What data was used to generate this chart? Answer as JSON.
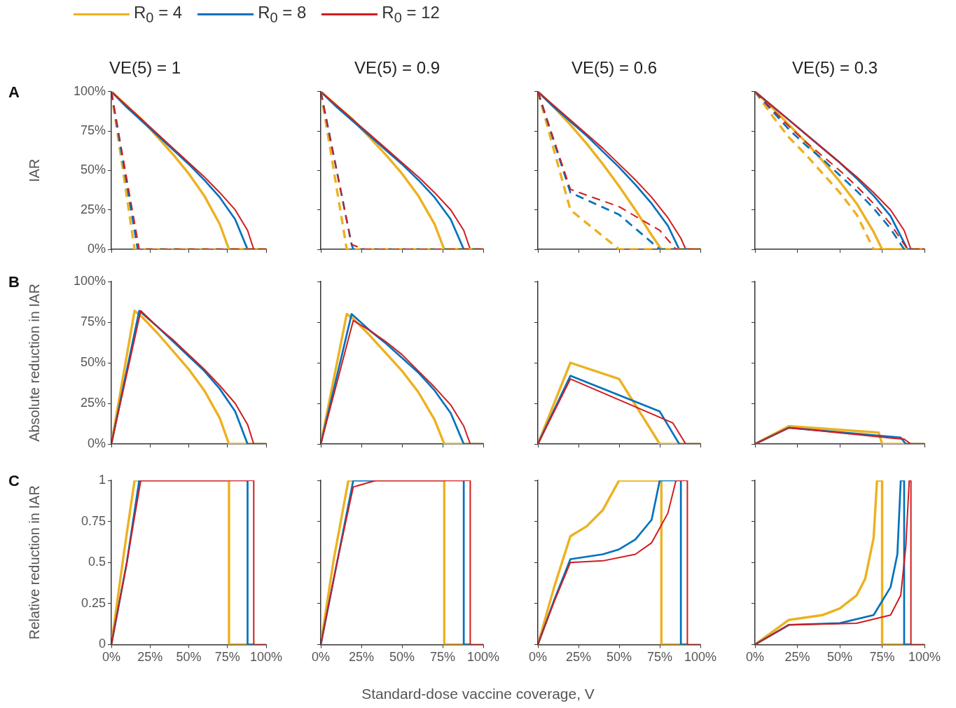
{
  "chart_data": [
    {
      "type": "line",
      "title": "VE(5) = 1",
      "ylabel": "IAR",
      "annotations": [
        "A"
      ],
      "legend": "top",
      "tick_labels": "y",
      "xlim": [
        0,
        100
      ],
      "xticks": [
        0,
        25,
        50,
        75,
        100
      ],
      "ylim": [
        0,
        100
      ],
      "yticks": [
        {
          "value": 0,
          "label": "0%"
        },
        {
          "value": 25,
          "label": "25%"
        },
        {
          "value": 50,
          "label": "50%"
        },
        {
          "value": 75,
          "label": "75%"
        },
        {
          "value": 100,
          "label": "100%"
        }
      ],
      "series": [
        {
          "name": "R$_{0}$ = 4",
          "color": "#edb120",
          "x": [
            0,
            10,
            20,
            30,
            40,
            50,
            60,
            70,
            76,
            100
          ],
          "values": [
            100,
            91,
            82,
            71,
            60,
            48,
            34,
            16,
            0,
            0
          ]
        },
        {
          "name": "R$_{0}$ = 8",
          "color": "#0072bd",
          "x": [
            0,
            10,
            20,
            30,
            40,
            50,
            60,
            70,
            80,
            88,
            92
          ],
          "values": [
            100,
            90,
            81,
            72,
            63,
            54,
            44,
            33,
            19,
            0,
            0
          ]
        },
        {
          "name": "R$_{0}$ = 12",
          "color": "#d01c1f",
          "x": [
            0,
            10,
            20,
            30,
            40,
            50,
            60,
            70,
            80,
            88,
            92,
            100
          ],
          "values": [
            100,
            91,
            82,
            73,
            64,
            55,
            46,
            36,
            25,
            12,
            0,
            0
          ]
        },
        {
          "color": "#edb120",
          "line_style": "dashed",
          "x": [
            0,
            15,
            100
          ],
          "values": [
            100,
            0,
            0
          ]
        },
        {
          "color": "#0072bd",
          "line_style": "dashed",
          "x": [
            0,
            17,
            100
          ],
          "values": [
            100,
            0,
            0
          ]
        },
        {
          "color": "#d01c1f",
          "line_style": "dashed",
          "x": [
            0,
            18,
            100
          ],
          "values": [
            100,
            0,
            0
          ]
        }
      ]
    },
    {
      "type": "line",
      "title": "VE(5) = 0.9",
      "tick_labels": false,
      "xlim": [
        0,
        100
      ],
      "xticks": [
        0,
        25,
        50,
        75,
        100
      ],
      "ylim": [
        0,
        100
      ],
      "yticks": [
        0,
        25,
        50,
        75,
        100
      ],
      "series": [
        {
          "color": "#edb120",
          "x": [
            0,
            10,
            20,
            30,
            40,
            50,
            60,
            70,
            76,
            100
          ],
          "values": [
            100,
            91,
            82,
            71,
            60,
            48,
            34,
            16,
            0,
            0
          ]
        },
        {
          "color": "#0072bd",
          "x": [
            0,
            10,
            20,
            30,
            40,
            50,
            60,
            70,
            80,
            88,
            100
          ],
          "values": [
            100,
            90,
            81,
            72,
            63,
            54,
            44,
            33,
            19,
            0,
            0
          ]
        },
        {
          "color": "#d01c1f",
          "x": [
            0,
            10,
            20,
            30,
            40,
            50,
            60,
            70,
            80,
            88,
            92,
            100
          ],
          "values": [
            100,
            91,
            82,
            73,
            64,
            55,
            46,
            36,
            25,
            12,
            0,
            0
          ]
        },
        {
          "color": "#edb120",
          "line_style": "dashed",
          "x": [
            0,
            16,
            100
          ],
          "values": [
            100,
            0,
            0
          ]
        },
        {
          "color": "#0072bd",
          "line_style": "dashed",
          "x": [
            0,
            19,
            20,
            100
          ],
          "values": [
            100,
            3,
            0,
            0
          ]
        },
        {
          "color": "#d01c1f",
          "line_style": "dashed",
          "x": [
            0,
            19,
            27,
            100
          ],
          "values": [
            100,
            3,
            0,
            0
          ]
        }
      ]
    },
    {
      "type": "line",
      "title": "VE(5) = 0.6",
      "tick_labels": false,
      "xlim": [
        0,
        100
      ],
      "xticks": [
        0,
        25,
        50,
        75,
        100
      ],
      "ylim": [
        0,
        100
      ],
      "yticks": [
        0,
        25,
        50,
        75,
        100
      ],
      "series": [
        {
          "color": "#edb120",
          "x": [
            0,
            10,
            20,
            30,
            40,
            50,
            60,
            70,
            76,
            100
          ],
          "values": [
            100,
            90,
            79,
            67,
            54,
            40,
            25,
            9,
            0,
            0
          ]
        },
        {
          "color": "#0072bd",
          "x": [
            0,
            10,
            20,
            30,
            40,
            50,
            60,
            70,
            80,
            87,
            100
          ],
          "values": [
            100,
            90,
            81,
            72,
            62,
            52,
            41,
            29,
            15,
            0,
            0
          ]
        },
        {
          "color": "#d01c1f",
          "x": [
            0,
            10,
            20,
            30,
            40,
            50,
            60,
            70,
            80,
            88,
            91,
            100
          ],
          "values": [
            100,
            91,
            82,
            73,
            64,
            54,
            44,
            33,
            20,
            7,
            0,
            0
          ]
        },
        {
          "color": "#edb120",
          "line_style": "dashed",
          "x": [
            0,
            20,
            50,
            100
          ],
          "values": [
            100,
            25,
            0,
            0
          ]
        },
        {
          "color": "#0072bd",
          "line_style": "dashed",
          "x": [
            0,
            20,
            50,
            75,
            100
          ],
          "values": [
            100,
            36,
            22,
            0,
            0
          ]
        },
        {
          "color": "#d01c1f",
          "line_style": "dashed",
          "x": [
            0,
            20,
            50,
            75,
            85,
            100
          ],
          "values": [
            100,
            38,
            27,
            12,
            0,
            0
          ]
        }
      ]
    },
    {
      "type": "line",
      "title": "VE(5) = 0.3",
      "tick_labels": false,
      "xlim": [
        0,
        100
      ],
      "xticks": [
        0,
        25,
        50,
        75,
        100
      ],
      "ylim": [
        0,
        100
      ],
      "yticks": [
        0,
        25,
        50,
        75,
        100
      ],
      "series": [
        {
          "color": "#edb120",
          "x": [
            0,
            10,
            20,
            30,
            40,
            50,
            60,
            70,
            75,
            100
          ],
          "values": [
            100,
            90,
            79,
            68,
            56,
            43,
            29,
            11,
            0,
            0
          ]
        },
        {
          "color": "#0072bd",
          "x": [
            0,
            10,
            20,
            30,
            40,
            50,
            60,
            70,
            80,
            90,
            100
          ],
          "values": [
            100,
            91,
            82,
            73,
            64,
            55,
            45,
            34,
            21,
            0,
            0
          ]
        },
        {
          "color": "#d01c1f",
          "x": [
            0,
            10,
            20,
            30,
            40,
            50,
            60,
            70,
            80,
            88,
            92,
            100
          ],
          "values": [
            100,
            91,
            82,
            73,
            64,
            55,
            46,
            36,
            25,
            12,
            0,
            0
          ]
        },
        {
          "color": "#edb120",
          "line_style": "dashed",
          "x": [
            0,
            10,
            20,
            30,
            40,
            50,
            60,
            70,
            100
          ],
          "values": [
            100,
            85,
            71,
            60,
            48,
            36,
            22,
            0,
            0
          ]
        },
        {
          "color": "#0072bd",
          "line_style": "dashed",
          "x": [
            0,
            10,
            20,
            30,
            40,
            50,
            60,
            70,
            80,
            88,
            100
          ],
          "values": [
            100,
            88,
            76,
            66,
            57,
            47,
            37,
            26,
            13,
            0,
            0
          ]
        },
        {
          "color": "#d01c1f",
          "line_style": "dashed",
          "x": [
            0,
            10,
            20,
            30,
            40,
            50,
            60,
            70,
            80,
            90,
            100
          ],
          "values": [
            100,
            89,
            78,
            68,
            59,
            50,
            40,
            29,
            16,
            0,
            0
          ]
        }
      ]
    },
    {
      "type": "line",
      "ylabel": "Absolute reduction in IAR",
      "annotations": [
        "B"
      ],
      "tick_labels": "y",
      "xlim": [
        0,
        100
      ],
      "xticks": [
        0,
        25,
        50,
        75,
        100
      ],
      "ylim": [
        0,
        100
      ],
      "yticks": [
        {
          "value": 0,
          "label": "0%"
        },
        {
          "value": 25,
          "label": "25%"
        },
        {
          "value": 50,
          "label": "50%"
        },
        {
          "value": 75,
          "label": "75%"
        },
        {
          "value": 100,
          "label": "100%"
        }
      ],
      "series": [
        {
          "color": "#edb120",
          "x": [
            0,
            15,
            20,
            30,
            40,
            50,
            60,
            70,
            76,
            100
          ],
          "values": [
            0,
            82,
            78,
            68,
            57,
            46,
            33,
            16,
            0,
            0
          ]
        },
        {
          "color": "#0072bd",
          "x": [
            0,
            18,
            30,
            40,
            50,
            60,
            70,
            80,
            88,
            100
          ],
          "values": [
            0,
            82,
            72,
            63,
            54,
            45,
            34,
            20,
            0,
            0
          ]
        },
        {
          "color": "#d01c1f",
          "x": [
            0,
            19,
            30,
            40,
            50,
            60,
            70,
            80,
            88,
            92,
            100
          ],
          "values": [
            0,
            82,
            72,
            64,
            55,
            46,
            36,
            25,
            12,
            0,
            0
          ]
        }
      ]
    },
    {
      "type": "line",
      "tick_labels": false,
      "xlim": [
        0,
        100
      ],
      "xticks": [
        0,
        25,
        50,
        75,
        100
      ],
      "ylim": [
        0,
        100
      ],
      "yticks": [
        0,
        25,
        50,
        75,
        100
      ],
      "series": [
        {
          "color": "#edb120",
          "x": [
            0,
            16,
            20,
            30,
            40,
            50,
            60,
            70,
            76,
            100
          ],
          "values": [
            0,
            80,
            77,
            67,
            56,
            45,
            32,
            15,
            0,
            0
          ]
        },
        {
          "color": "#0072bd",
          "x": [
            0,
            19,
            30,
            40,
            50,
            60,
            70,
            80,
            88,
            100
          ],
          "values": [
            0,
            80,
            70,
            62,
            53,
            44,
            33,
            19,
            0,
            0
          ]
        },
        {
          "color": "#d01c1f",
          "x": [
            0,
            20,
            30,
            40,
            50,
            60,
            70,
            80,
            88,
            92,
            100
          ],
          "values": [
            0,
            76,
            70,
            63,
            55,
            45,
            35,
            24,
            11,
            0,
            0
          ]
        }
      ]
    },
    {
      "type": "line",
      "tick_labels": false,
      "xlim": [
        0,
        100
      ],
      "xticks": [
        0,
        25,
        50,
        75,
        100
      ],
      "ylim": [
        0,
        100
      ],
      "yticks": [
        0,
        25,
        50,
        75,
        100
      ],
      "series": [
        {
          "color": "#edb120",
          "x": [
            0,
            20,
            50,
            75,
            100
          ],
          "values": [
            0,
            50,
            40,
            0,
            0
          ]
        },
        {
          "color": "#0072bd",
          "x": [
            0,
            20,
            75,
            87,
            100
          ],
          "values": [
            0,
            42,
            20,
            0,
            0
          ]
        },
        {
          "color": "#d01c1f",
          "x": [
            0,
            20,
            83,
            91,
            100
          ],
          "values": [
            0,
            40,
            13,
            0,
            0
          ]
        }
      ]
    },
    {
      "type": "line",
      "tick_labels": false,
      "xlim": [
        0,
        100
      ],
      "xticks": [
        0,
        25,
        50,
        75,
        100
      ],
      "ylim": [
        0,
        100
      ],
      "yticks": [
        0,
        25,
        50,
        75,
        100
      ],
      "series": [
        {
          "color": "#edb120",
          "x": [
            0,
            20,
            73,
            75,
            100
          ],
          "values": [
            0,
            11,
            7,
            0,
            0
          ]
        },
        {
          "color": "#0072bd",
          "x": [
            0,
            20,
            86,
            89,
            100
          ],
          "values": [
            0,
            10,
            4,
            0,
            0
          ]
        },
        {
          "color": "#d01c1f",
          "x": [
            0,
            20,
            87,
            88,
            92,
            100
          ],
          "values": [
            0,
            10,
            3,
            3,
            0,
            0
          ]
        }
      ]
    },
    {
      "type": "line",
      "ylabel": "Relative reduction in IAR",
      "annotations": [
        "C"
      ],
      "xlim": [
        0,
        100
      ],
      "xticks": [
        {
          "value": 0,
          "label": "0%"
        },
        {
          "value": 25,
          "label": "25%"
        },
        {
          "value": 50,
          "label": "50%"
        },
        {
          "value": 75,
          "label": "75%"
        },
        {
          "value": 100,
          "label": "100%"
        }
      ],
      "ylim": [
        0,
        1
      ],
      "yticks": [
        0,
        0.25,
        0.5,
        0.75,
        1
      ],
      "series": [
        {
          "color": "#edb120",
          "x": [
            0,
            8,
            15,
            76,
            76,
            92
          ],
          "values": [
            0,
            0.55,
            1,
            1,
            0,
            0
          ]
        },
        {
          "color": "#0072bd",
          "x": [
            0,
            10,
            18,
            88,
            88,
            92
          ],
          "values": [
            0,
            0.5,
            1,
            1,
            0,
            0
          ]
        },
        {
          "color": "#d01c1f",
          "x": [
            0,
            10,
            19,
            92,
            92,
            100
          ],
          "values": [
            0,
            0.5,
            1,
            1,
            0,
            0
          ]
        }
      ]
    },
    {
      "type": "line",
      "xlabel": "Standard-dose vaccine coverage, V",
      "tick_labels": "x",
      "xlim": [
        0,
        100
      ],
      "xticks": [
        {
          "value": 0,
          "label": "0%"
        },
        {
          "value": 25,
          "label": "25%"
        },
        {
          "value": 50,
          "label": "50%"
        },
        {
          "value": 75,
          "label": "75%"
        },
        {
          "value": 100,
          "label": "100%"
        }
      ],
      "ylim": [
        0,
        1
      ],
      "yticks": [
        0,
        0.25,
        0.5,
        0.75,
        1
      ],
      "series": [
        {
          "color": "#edb120",
          "x": [
            0,
            8,
            17,
            76,
            76,
            92
          ],
          "values": [
            0,
            0.52,
            1,
            1,
            0,
            0
          ]
        },
        {
          "color": "#0072bd",
          "x": [
            0,
            10,
            20,
            88,
            88,
            92
          ],
          "values": [
            0,
            0.5,
            1,
            1,
            0,
            0
          ]
        },
        {
          "color": "#d01c1f",
          "x": [
            0,
            10,
            20,
            34,
            92,
            92,
            100
          ],
          "values": [
            0,
            0.5,
            0.96,
            1,
            1,
            0,
            0
          ]
        }
      ]
    },
    {
      "type": "line",
      "tick_labels": "x",
      "xlim": [
        0,
        100
      ],
      "xticks": [
        {
          "value": 0,
          "label": "0%"
        },
        {
          "value": 25,
          "label": "25%"
        },
        {
          "value": 50,
          "label": "50%"
        },
        {
          "value": 75,
          "label": "75%"
        },
        {
          "value": 100,
          "label": "100%"
        }
      ],
      "ylim": [
        0,
        1
      ],
      "yticks": [
        0,
        0.25,
        0.5,
        0.75,
        1
      ],
      "series": [
        {
          "color": "#edb120",
          "x": [
            0,
            10,
            20,
            30,
            40,
            50,
            76,
            76,
            92
          ],
          "values": [
            0,
            0.35,
            0.66,
            0.72,
            0.82,
            1,
            1,
            0,
            0
          ]
        },
        {
          "color": "#0072bd",
          "x": [
            0,
            10,
            20,
            40,
            50,
            60,
            70,
            75,
            88,
            88,
            92
          ],
          "values": [
            0,
            0.27,
            0.52,
            0.55,
            0.58,
            0.64,
            0.76,
            1,
            1,
            0,
            0
          ]
        },
        {
          "color": "#d01c1f",
          "x": [
            0,
            10,
            20,
            40,
            60,
            70,
            80,
            85,
            92,
            92,
            100
          ],
          "values": [
            0,
            0.26,
            0.5,
            0.51,
            0.55,
            0.62,
            0.8,
            1,
            1,
            0,
            0
          ]
        }
      ]
    },
    {
      "type": "line",
      "tick_labels": "x",
      "xlim": [
        0,
        100
      ],
      "xticks": [
        {
          "value": 0,
          "label": "0%"
        },
        {
          "value": 25,
          "label": "25%"
        },
        {
          "value": 50,
          "label": "50%"
        },
        {
          "value": 75,
          "label": "75%"
        },
        {
          "value": 100,
          "label": "100%"
        }
      ],
      "ylim": [
        0,
        1
      ],
      "yticks": [
        0,
        0.25,
        0.5,
        0.75,
        1
      ],
      "series": [
        {
          "color": "#edb120",
          "x": [
            0,
            20,
            40,
            50,
            60,
            65,
            70,
            72,
            75,
            75,
            92
          ],
          "values": [
            0,
            0.15,
            0.18,
            0.22,
            0.3,
            0.4,
            0.65,
            1,
            1,
            0,
            0
          ]
        },
        {
          "color": "#0072bd",
          "x": [
            0,
            20,
            50,
            70,
            80,
            84,
            86,
            88,
            88,
            92
          ],
          "values": [
            0,
            0.12,
            0.13,
            0.18,
            0.35,
            0.55,
            1,
            1,
            0,
            0
          ]
        },
        {
          "color": "#d01c1f",
          "x": [
            0,
            20,
            60,
            80,
            86,
            89,
            91,
            92,
            92,
            100
          ],
          "values": [
            0,
            0.12,
            0.13,
            0.18,
            0.3,
            0.6,
            1,
            1,
            0,
            0
          ]
        }
      ]
    }
  ]
}
